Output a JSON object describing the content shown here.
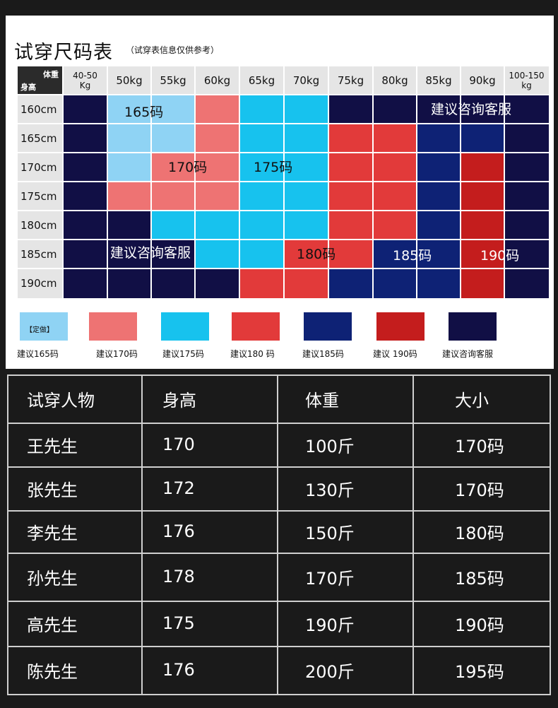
{
  "header": {
    "title": "试穿尺码表",
    "subtitle": "（试穿表信息仅供参考）"
  },
  "chart_data": {
    "type": "table",
    "corner": {
      "top": "体重",
      "bottom": "身高"
    },
    "weights": [
      "40-50 Kg",
      "50kg",
      "55kg",
      "60kg",
      "65kg",
      "70kg",
      "75kg",
      "80kg",
      "85kg",
      "90kg",
      "100-150 kg"
    ],
    "heights": [
      "160cm",
      "165cm",
      "170cm",
      "175cm",
      "180cm",
      "185cm",
      "190cm"
    ],
    "grid": [
      [
        "consult",
        "165",
        "165",
        "170",
        "175",
        "175",
        "consult",
        "consult",
        "consult",
        "consult",
        "consult"
      ],
      [
        "consult",
        "165",
        "165",
        "170",
        "175",
        "175",
        "180",
        "180",
        "185",
        "185",
        "consult"
      ],
      [
        "consult",
        "165",
        "170",
        "170",
        "175",
        "175",
        "180",
        "180",
        "185",
        "190",
        "consult"
      ],
      [
        "consult",
        "170",
        "170",
        "170",
        "175",
        "175",
        "180",
        "180",
        "185",
        "190",
        "consult"
      ],
      [
        "consult",
        "consult",
        "175",
        "175",
        "175",
        "175",
        "180",
        "180",
        "185",
        "190",
        "consult"
      ],
      [
        "consult",
        "consult",
        "consult",
        "175",
        "175",
        "180",
        "180",
        "185",
        "185",
        "190",
        "consult"
      ],
      [
        "consult",
        "consult",
        "consult",
        "consult",
        "180",
        "180",
        "185",
        "185",
        "185",
        "190",
        "consult"
      ]
    ],
    "region_labels": [
      {
        "text": "165码",
        "row": 0,
        "col": 1
      },
      {
        "text": "170码",
        "row": 2,
        "col": 2
      },
      {
        "text": "175码",
        "row": 2,
        "col": 4
      },
      {
        "text": "180码",
        "row": 5,
        "col": 5
      },
      {
        "text": "185码",
        "row": 5,
        "col": 7
      },
      {
        "text": "190码",
        "row": 5,
        "col": 9
      },
      {
        "text": "建议咨询客服",
        "row": 0,
        "col": 8
      },
      {
        "text": "建议咨询客服",
        "row": 5,
        "col": 1
      }
    ],
    "colors": {
      "165": "#8fd3f4",
      "170": "#ee7373",
      "175": "#17c2ee",
      "180": "#e23a3a",
      "185": "#0e2275",
      "190": "#c41d1d",
      "consult": "#110f45"
    }
  },
  "legend": {
    "items": [
      {
        "key": "165",
        "label": "建议165码",
        "inner": "【定做】"
      },
      {
        "key": "170",
        "label": "建议170码"
      },
      {
        "key": "175",
        "label": "建议175码"
      },
      {
        "key": "180",
        "label": "建议180 码"
      },
      {
        "key": "185",
        "label": "建议185码"
      },
      {
        "key": "190",
        "label": "建议 190码"
      },
      {
        "key": "consult",
        "label": "建议咨询客服"
      }
    ]
  },
  "fit_table": {
    "columns": [
      "试穿人物",
      "身高",
      "体重",
      "大小"
    ],
    "rows": [
      [
        "王先生",
        "170",
        "100斤",
        "170码"
      ],
      [
        "张先生",
        "172",
        "130斤",
        "170码"
      ],
      [
        "李先生",
        "176",
        "150斤",
        "180码"
      ],
      [
        "孙先生",
        "178",
        "170斤",
        "185码"
      ],
      [
        "高先生",
        "175",
        "190斤",
        "190码"
      ],
      [
        "陈先生",
        "176",
        "200斤",
        "195码"
      ]
    ]
  }
}
